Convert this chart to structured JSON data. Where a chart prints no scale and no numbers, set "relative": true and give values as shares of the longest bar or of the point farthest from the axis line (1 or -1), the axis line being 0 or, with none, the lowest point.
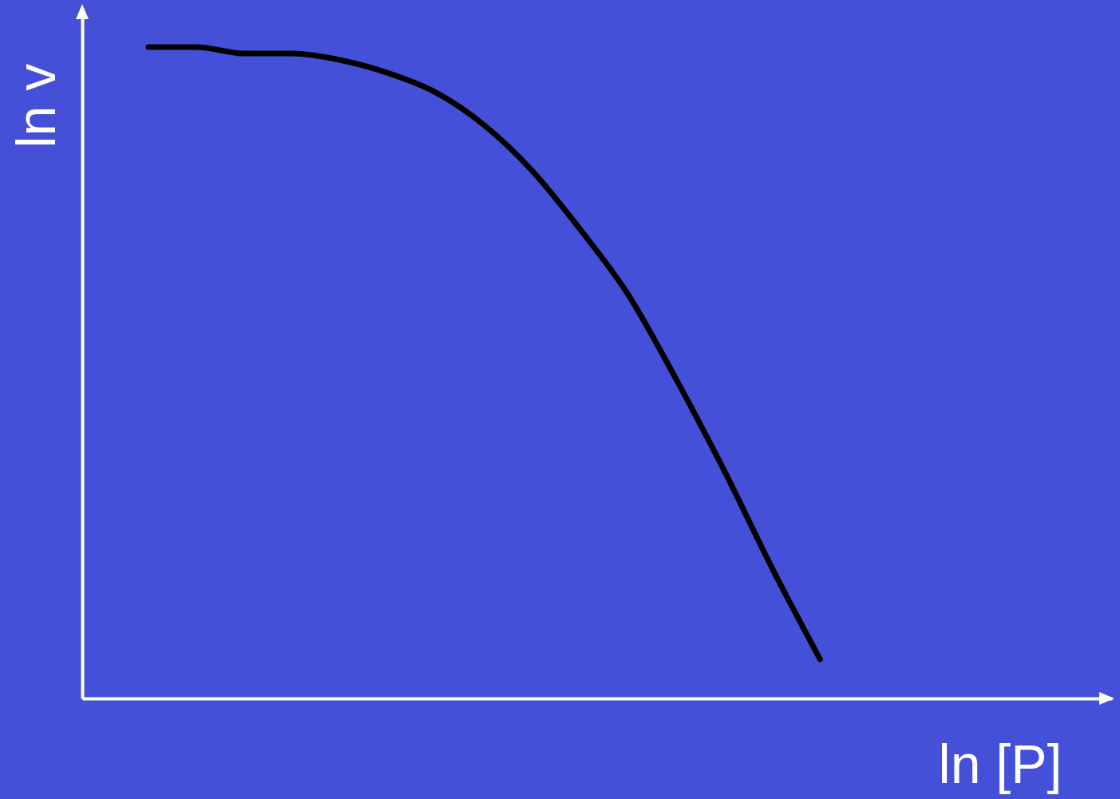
{
  "chart_data": {
    "type": "line",
    "xlabel": "ln [P]",
    "ylabel": "ln v",
    "relative": true,
    "categories": [
      null,
      null,
      null,
      null,
      null,
      null,
      null,
      null,
      null,
      null,
      null,
      null,
      null,
      null,
      null
    ],
    "series": [
      {
        "color": "#000000",
        "values": [
          1,
          1,
          0.99,
          0.99,
          0.98,
          0.96,
          0.93,
          0.88,
          0.81,
          0.72,
          0.62,
          0.49,
          0.35,
          0.2,
          0.06
        ]
      }
    ]
  }
}
